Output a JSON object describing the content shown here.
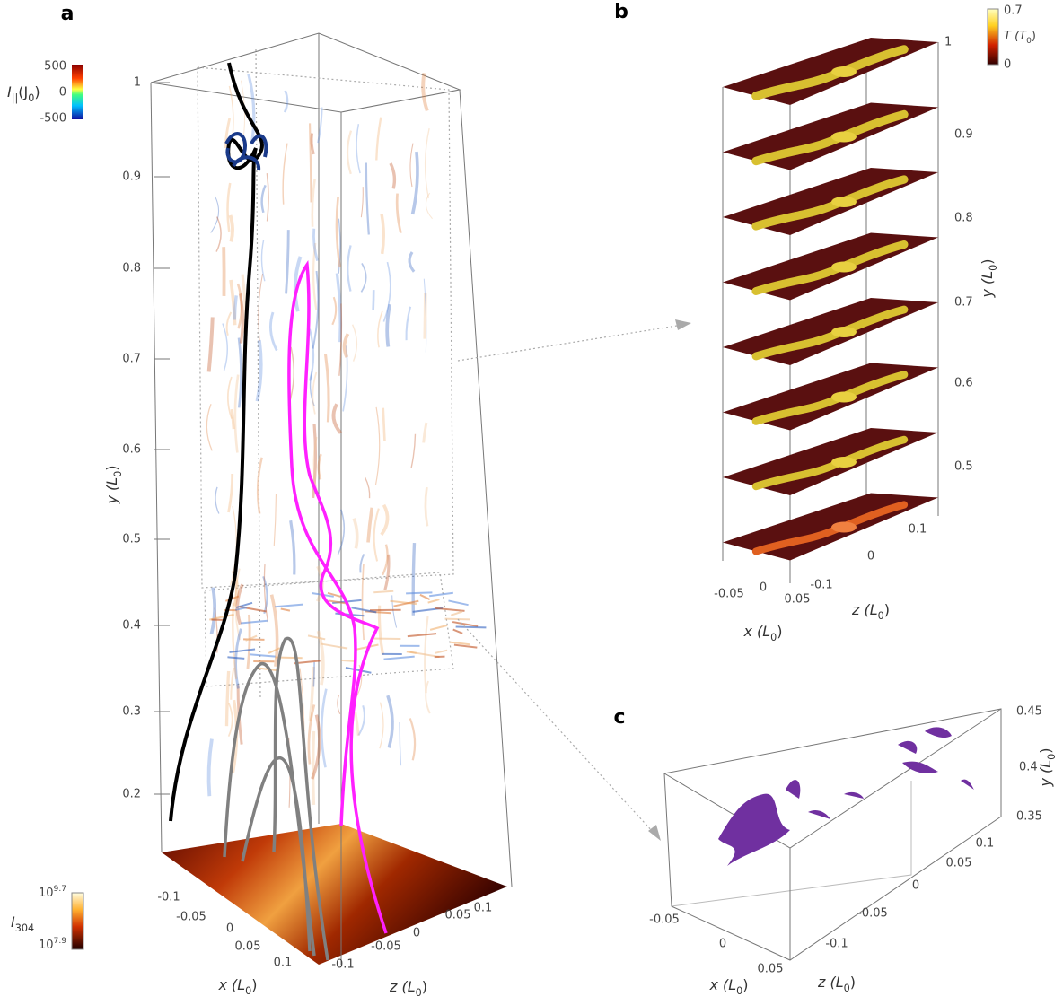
{
  "panels": {
    "a": {
      "label": "a",
      "colorbar_current": {
        "symbol": "I",
        "symbol_sub": "||",
        "unit_open": "(J",
        "unit_sub": "0",
        "unit_close": ")",
        "ticks": [
          "500",
          "0",
          "-500"
        ]
      },
      "colorbar_intensity": {
        "symbol": "I",
        "symbol_sub": "304",
        "top_base": "10",
        "top_exp": "9.7",
        "bottom_base": "10",
        "bottom_exp": "7.9"
      },
      "y_ticks": [
        "1",
        "0.9",
        "0.8",
        "0.7",
        "0.6",
        "0.5",
        "0.4",
        "0.3",
        "0.2"
      ],
      "x_ticks": [
        "-0.1",
        "-0.05",
        "0",
        "0.05",
        "0.1"
      ],
      "z_ticks": [
        "-0.1",
        "-0.05",
        "0",
        "0.05",
        "0.1"
      ],
      "y_title": {
        "text": "y (L",
        "sub": "0",
        "close": ")"
      },
      "x_title": {
        "text": "x (L",
        "sub": "0",
        "close": ")"
      },
      "z_title": {
        "text": "z (L",
        "sub": "0",
        "close": ")"
      }
    },
    "b": {
      "label": "b",
      "colorbar_temperature": {
        "symbol": "T (T",
        "symbol_sub": "0",
        "close": ")",
        "ticks": [
          "0.7",
          "0"
        ]
      },
      "y_ticks": [
        "1",
        "0.9",
        "0.8",
        "0.7",
        "0.6",
        "0.5"
      ],
      "x_ticks": [
        "-0.05",
        "0",
        "0.05"
      ],
      "z_ticks": [
        "-0.1",
        "0",
        "0.1"
      ],
      "y_title": {
        "text": "y (L",
        "sub": "0",
        "close": ")"
      },
      "x_title": {
        "text": "x (L",
        "sub": "0",
        "close": ")"
      },
      "z_title": {
        "text": "z (L",
        "sub": "0",
        "close": ")"
      }
    },
    "c": {
      "label": "c",
      "y_ticks": [
        "0.45",
        "0.4",
        "0.35"
      ],
      "x_ticks": [
        "-0.05",
        "0",
        "0.05"
      ],
      "z_ticks": [
        "0.1",
        "0.05",
        "0",
        "-0.05",
        "-0.1"
      ],
      "y_title": {
        "text": "y (L",
        "sub": "0",
        "close": ")"
      },
      "x_title": {
        "text": "x (L",
        "sub": "0",
        "close": ")"
      },
      "z_title": {
        "text": "z (L",
        "sub": "0",
        "close": ")"
      }
    }
  }
}
